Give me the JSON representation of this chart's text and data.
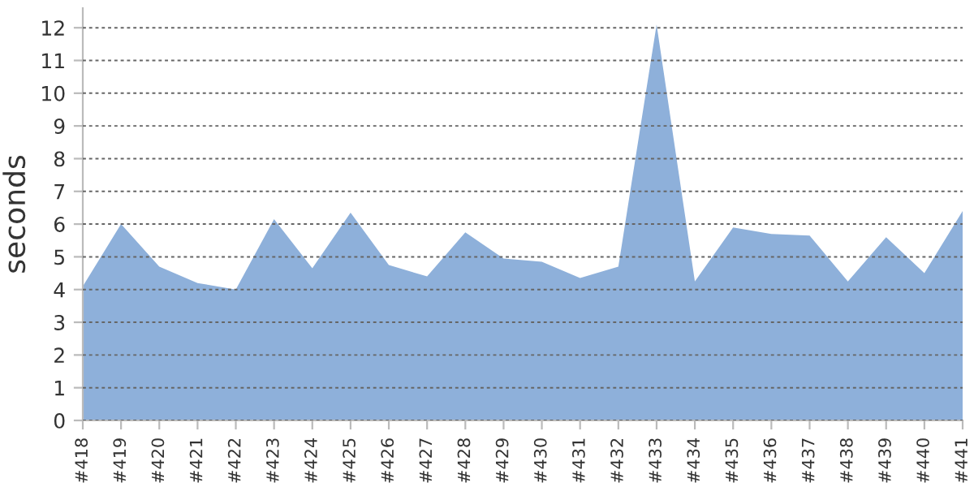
{
  "chart_data": {
    "type": "area",
    "ylabel": "seconds",
    "categories": [
      "#418",
      "#419",
      "#420",
      "#421",
      "#422",
      "#423",
      "#424",
      "#425",
      "#426",
      "#427",
      "#428",
      "#429",
      "#430",
      "#431",
      "#432",
      "#433",
      "#434",
      "#435",
      "#436",
      "#437",
      "#438",
      "#439",
      "#440",
      "#441"
    ],
    "series": [
      {
        "color": "#8eb0da",
        "values": [
          4.1,
          6.0,
          4.7,
          4.2,
          4.0,
          6.15,
          4.65,
          6.35,
          4.75,
          4.4,
          5.75,
          4.95,
          4.85,
          4.35,
          4.7,
          12.1,
          4.25,
          5.9,
          5.7,
          5.65,
          4.25,
          5.6,
          4.5,
          6.4
        ]
      }
    ],
    "ylim": [
      0,
      12.6
    ],
    "yticks": [
      0,
      1,
      2,
      3,
      4,
      5,
      6,
      7,
      8,
      9,
      10,
      11,
      12
    ],
    "grid": "y",
    "legend": false
  }
}
